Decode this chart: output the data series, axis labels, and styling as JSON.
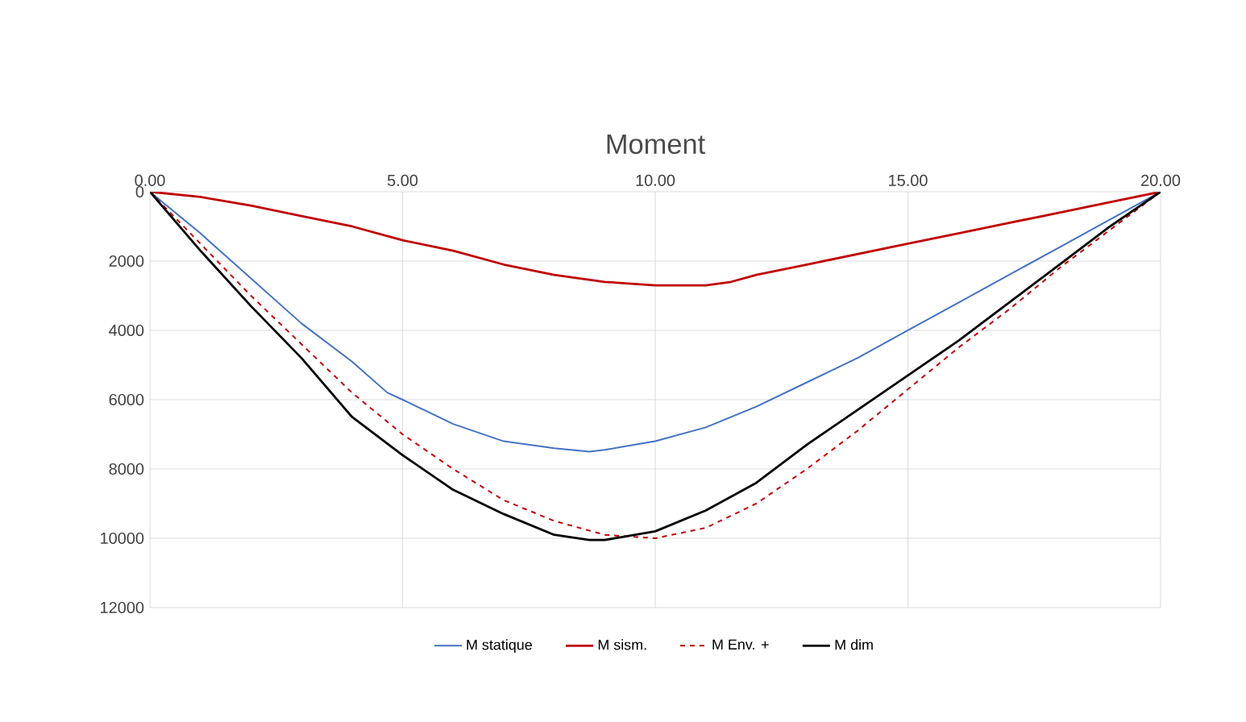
{
  "chart_data": {
    "type": "line",
    "title": "Moment",
    "xlim": [
      0,
      20
    ],
    "xticks": [
      {
        "value": 0,
        "label": "0.00"
      },
      {
        "value": 5,
        "label": "5.00"
      },
      {
        "value": 10,
        "label": "10.00"
      },
      {
        "value": 15,
        "label": "15.00"
      },
      {
        "value": 20,
        "label": "20.00"
      }
    ],
    "ylim": [
      12000,
      0
    ],
    "yticks": [
      0,
      2000,
      4000,
      6000,
      8000,
      10000,
      12000
    ],
    "grid": true,
    "legend": "bottom",
    "marker": "none",
    "series": [
      {
        "name": "M statique",
        "color": "#4472c4",
        "line_style": "solid",
        "x": [
          0,
          1,
          2,
          3,
          4,
          4.7,
          5,
          6,
          7,
          8,
          8.7,
          9,
          10,
          11,
          12,
          13,
          14,
          15,
          16,
          17,
          18,
          19,
          20
        ],
        "values": [
          0,
          1200,
          2500,
          3800,
          4900,
          5800,
          6000,
          6700,
          7200,
          7400,
          7500,
          7450,
          7200,
          6800,
          6200,
          5500,
          4800,
          4000,
          3200,
          2400,
          1600,
          800,
          0
        ]
      },
      {
        "name": "M sism.",
        "color": "#c00000",
        "line_style": "solid",
        "x": [
          0,
          1,
          2,
          3,
          4,
          5,
          6,
          7,
          8,
          9,
          10,
          11,
          11.5,
          12,
          13,
          14,
          15,
          16,
          17,
          18,
          19,
          20
        ],
        "values": [
          0,
          150,
          400,
          700,
          1000,
          1400,
          1700,
          2100,
          2400,
          2600,
          2700,
          2700,
          2600,
          2400,
          2100,
          1800,
          1500,
          1200,
          900,
          600,
          300,
          0
        ]
      },
      {
        "name": "M Env. +",
        "color": "#c00000",
        "line_style": "dashed",
        "x": [
          0,
          1,
          2,
          3,
          4,
          5,
          6,
          7,
          8,
          9,
          10,
          11,
          12,
          13,
          14,
          15,
          16,
          17,
          18,
          19,
          20
        ],
        "values": [
          0,
          1500,
          3000,
          4400,
          5800,
          7000,
          8000,
          8900,
          9500,
          9900,
          10000,
          9700,
          9000,
          8000,
          6900,
          5700,
          4500,
          3400,
          2200,
          1100,
          0
        ]
      },
      {
        "name": "M dim",
        "color": "#000000",
        "line_style": "solid",
        "x": [
          0,
          1,
          2,
          3,
          4,
          5,
          6,
          7,
          8,
          8.7,
          9,
          10,
          11,
          12,
          13,
          14,
          15,
          16,
          17,
          18,
          19,
          20
        ],
        "values": [
          0,
          1700,
          3300,
          4800,
          6500,
          7600,
          8600,
          9300,
          9900,
          10050,
          10050,
          9800,
          9200,
          8400,
          7300,
          6300,
          5300,
          4300,
          3200,
          2100,
          1000,
          0
        ]
      }
    ]
  }
}
